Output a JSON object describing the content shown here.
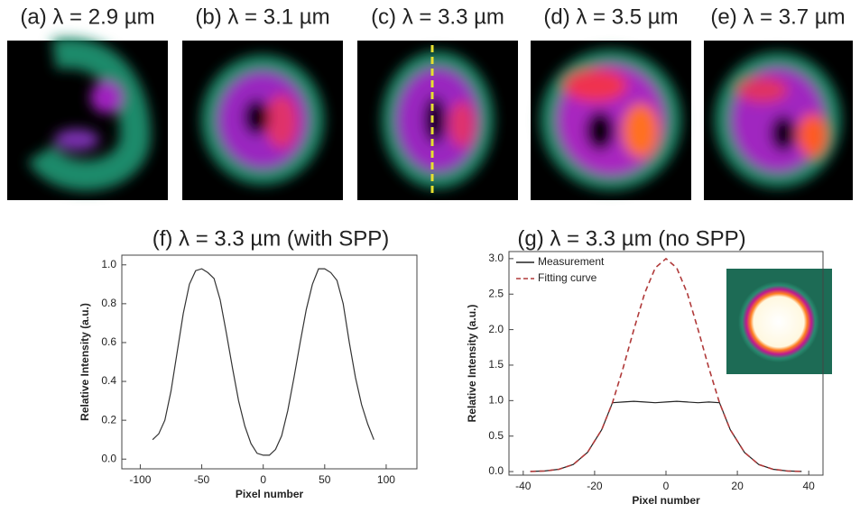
{
  "images": [
    {
      "title": "(a) λ = 2.9 µm"
    },
    {
      "title": "(b) λ = 3.1 µm"
    },
    {
      "title": "(c) λ = 3.3 µm"
    },
    {
      "title": "(d) λ = 3.5 µm"
    },
    {
      "title": "(e) λ = 3.7 µm"
    }
  ],
  "chart_data": [
    {
      "type": "line",
      "title": "(f) λ = 3.3 µm (with SPP)",
      "x_label": "Pixel number",
      "y_label": "Relative Intensity (a.u.)",
      "x": [
        -90,
        -85,
        -80,
        -75,
        -70,
        -65,
        -60,
        -55,
        -50,
        -45,
        -40,
        -35,
        -30,
        -25,
        -20,
        -15,
        -10,
        -5,
        0,
        5,
        10,
        15,
        20,
        25,
        30,
        35,
        40,
        45,
        50,
        55,
        60,
        65,
        70,
        75,
        80,
        85,
        90
      ],
      "series": [
        {
          "color": "#333333",
          "dash": false,
          "values": [
            0.1,
            0.13,
            0.2,
            0.35,
            0.55,
            0.75,
            0.9,
            0.97,
            0.98,
            0.96,
            0.93,
            0.82,
            0.65,
            0.47,
            0.3,
            0.17,
            0.08,
            0.03,
            0.02,
            0.02,
            0.05,
            0.12,
            0.25,
            0.42,
            0.6,
            0.77,
            0.9,
            0.98,
            0.98,
            0.96,
            0.92,
            0.8,
            0.6,
            0.42,
            0.28,
            0.18,
            0.1
          ]
        }
      ],
      "xlim": [
        -115,
        125
      ],
      "xticks": [
        -100,
        -50,
        0,
        50,
        100
      ],
      "ylim": [
        -0.05,
        1.05
      ],
      "yticks": [
        {
          "value": 0,
          "label": "0.0"
        },
        0.2,
        0.4,
        0.6,
        0.8,
        {
          "value": 1,
          "label": "1.0"
        }
      ]
    },
    {
      "type": "line",
      "title": "(g) λ = 3.3 µm (no SPP)",
      "x_label": "Pixel number",
      "y_label": "Relative Intensity (a.u.)",
      "x": [
        -38,
        -34,
        -30,
        -26,
        -22,
        -18,
        -15,
        -12,
        -9,
        -6,
        -3,
        0,
        3,
        6,
        9,
        12,
        15,
        18,
        22,
        26,
        30,
        34,
        38
      ],
      "series": [
        {
          "name": "Measurement",
          "color": "#222222",
          "dash": false,
          "values": [
            0.002,
            0.009,
            0.033,
            0.1,
            0.27,
            0.59,
            0.97,
            0.98,
            0.99,
            0.98,
            0.97,
            0.98,
            0.99,
            0.98,
            0.97,
            0.98,
            0.97,
            0.59,
            0.27,
            0.1,
            0.033,
            0.009,
            0.002
          ]
        },
        {
          "name": "Fitting curve",
          "color": "#b03a3a",
          "dash": true,
          "values": [
            0.002,
            0.009,
            0.033,
            0.1,
            0.27,
            0.59,
            0.97,
            1.46,
            2.0,
            2.51,
            2.87,
            3.0,
            2.87,
            2.51,
            2.0,
            1.46,
            0.97,
            0.59,
            0.27,
            0.1,
            0.033,
            0.009,
            0.002
          ]
        }
      ],
      "xlim": [
        -44,
        44
      ],
      "xticks": [
        -40,
        -20,
        0,
        20,
        40
      ],
      "ylim": [
        -0.05,
        3.1
      ],
      "yticks": [
        {
          "value": 0,
          "label": "0.0"
        },
        0.5,
        {
          "value": 1,
          "label": "1.0"
        },
        1.5,
        {
          "value": 2,
          "label": "2.0"
        },
        2.5,
        {
          "value": 3,
          "label": "3.0"
        }
      ]
    }
  ]
}
